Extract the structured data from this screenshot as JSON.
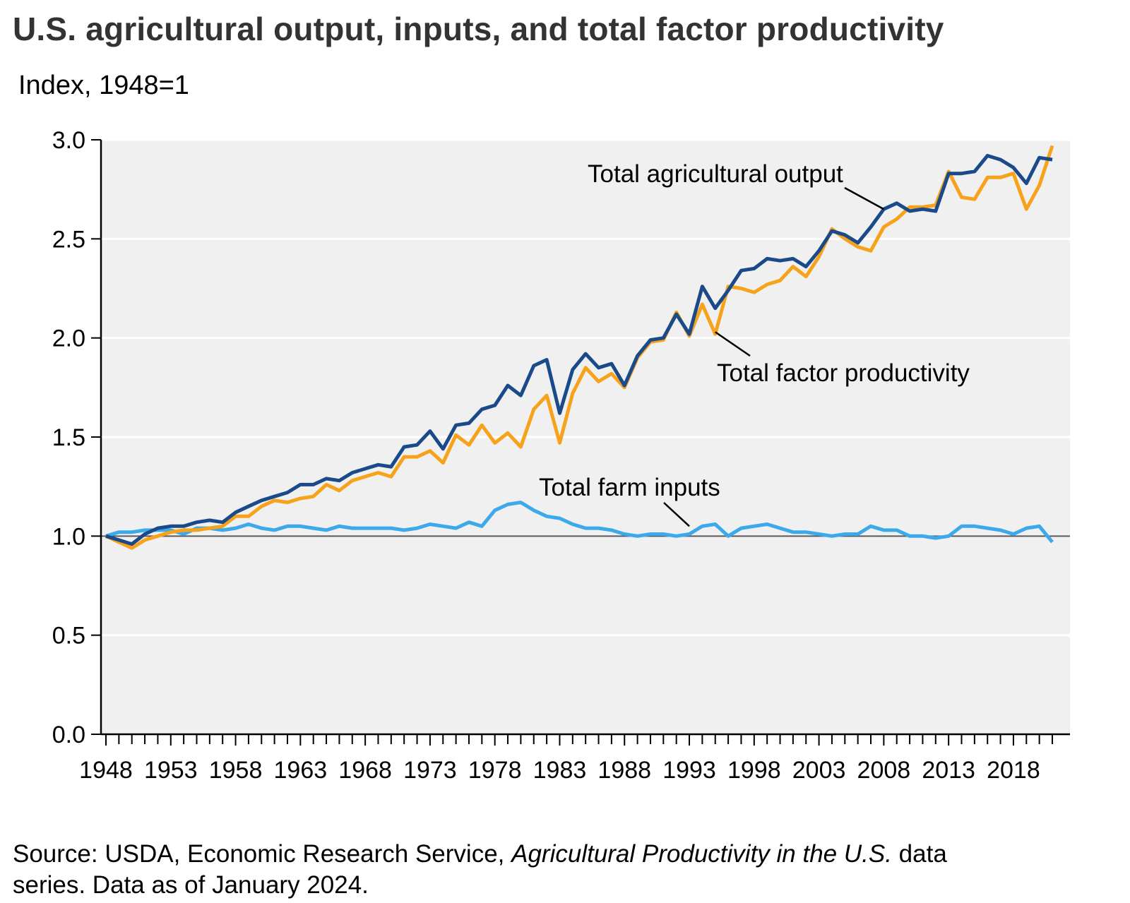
{
  "chart_data": {
    "type": "line",
    "title": "U.S. agricultural output, inputs, and total factor productivity",
    "subtitle": "Index, 1948=1",
    "xlabel": "",
    "ylabel": "Index, 1948=1",
    "xlim": [
      1948,
      2021
    ],
    "ylim": [
      0,
      3
    ],
    "grid": true,
    "reference_line": 1.0,
    "y_ticks": [
      "0.0",
      "0.5",
      "1.0",
      "1.5",
      "2.0",
      "2.5",
      "3.0"
    ],
    "x_ticks": [
      "1948",
      "1953",
      "1958",
      "1963",
      "1968",
      "1973",
      "1978",
      "1983",
      "1988",
      "1993",
      "1998",
      "2003",
      "2008",
      "2013",
      "2018"
    ],
    "x_start": 1948,
    "series": [
      {
        "name": "Total agricultural output",
        "color": "#1a4a8a",
        "values": [
          1.0,
          0.98,
          0.96,
          1.01,
          1.04,
          1.05,
          1.05,
          1.07,
          1.08,
          1.07,
          1.12,
          1.15,
          1.18,
          1.2,
          1.22,
          1.26,
          1.26,
          1.29,
          1.28,
          1.32,
          1.34,
          1.36,
          1.35,
          1.45,
          1.46,
          1.53,
          1.44,
          1.56,
          1.57,
          1.64,
          1.66,
          1.76,
          1.71,
          1.86,
          1.89,
          1.62,
          1.84,
          1.92,
          1.85,
          1.87,
          1.76,
          1.91,
          1.99,
          2.0,
          2.12,
          2.02,
          2.26,
          2.15,
          2.24,
          2.34,
          2.35,
          2.4,
          2.39,
          2.4,
          2.36,
          2.44,
          2.54,
          2.52,
          2.48,
          2.56,
          2.65,
          2.68,
          2.64,
          2.65,
          2.64,
          2.83,
          2.83,
          2.84,
          2.92,
          2.9,
          2.86,
          2.78,
          2.91,
          2.9
        ]
      },
      {
        "name": "Total factor productivity",
        "color": "#f7a21b",
        "values": [
          1.0,
          0.97,
          0.94,
          0.98,
          1.0,
          1.02,
          1.03,
          1.03,
          1.04,
          1.05,
          1.1,
          1.1,
          1.15,
          1.18,
          1.17,
          1.19,
          1.2,
          1.26,
          1.23,
          1.28,
          1.3,
          1.32,
          1.3,
          1.4,
          1.4,
          1.43,
          1.37,
          1.51,
          1.46,
          1.56,
          1.47,
          1.52,
          1.45,
          1.64,
          1.71,
          1.47,
          1.72,
          1.85,
          1.78,
          1.82,
          1.75,
          1.9,
          1.98,
          1.99,
          2.13,
          2.01,
          2.17,
          2.02,
          2.26,
          2.25,
          2.23,
          2.27,
          2.29,
          2.36,
          2.31,
          2.41,
          2.55,
          2.5,
          2.46,
          2.44,
          2.56,
          2.6,
          2.66,
          2.66,
          2.67,
          2.84,
          2.71,
          2.7,
          2.81,
          2.81,
          2.83,
          2.65,
          2.77,
          2.97
        ]
      },
      {
        "name": "Total farm inputs",
        "color": "#3ba9ea",
        "values": [
          1.0,
          1.02,
          1.02,
          1.03,
          1.03,
          1.03,
          1.01,
          1.04,
          1.04,
          1.03,
          1.04,
          1.06,
          1.04,
          1.03,
          1.05,
          1.05,
          1.04,
          1.03,
          1.05,
          1.04,
          1.04,
          1.04,
          1.04,
          1.03,
          1.04,
          1.06,
          1.05,
          1.04,
          1.07,
          1.05,
          1.13,
          1.16,
          1.17,
          1.13,
          1.1,
          1.09,
          1.06,
          1.04,
          1.04,
          1.03,
          1.01,
          1.0,
          1.01,
          1.01,
          1.0,
          1.01,
          1.05,
          1.06,
          1.0,
          1.04,
          1.05,
          1.06,
          1.04,
          1.02,
          1.02,
          1.01,
          1.0,
          1.01,
          1.01,
          1.05,
          1.03,
          1.03,
          1.0,
          1.0,
          0.99,
          1.0,
          1.05,
          1.05,
          1.04,
          1.03,
          1.01,
          1.04,
          1.05,
          0.97
        ]
      }
    ],
    "annotations": [
      {
        "text": "Total agricultural output",
        "year": 2008,
        "value": 2.65
      },
      {
        "text": "Total factor productivity",
        "year": 1995,
        "value": 2.03
      },
      {
        "text": "Total farm inputs",
        "year": 1993,
        "value": 1.05
      }
    ]
  },
  "source": {
    "prefix": "Source: USDA, Economic Research Service, ",
    "italic": "Agricultural Productivity in the U.S.",
    "suffix": " data",
    "line2": "series. Data as of January 2024."
  }
}
